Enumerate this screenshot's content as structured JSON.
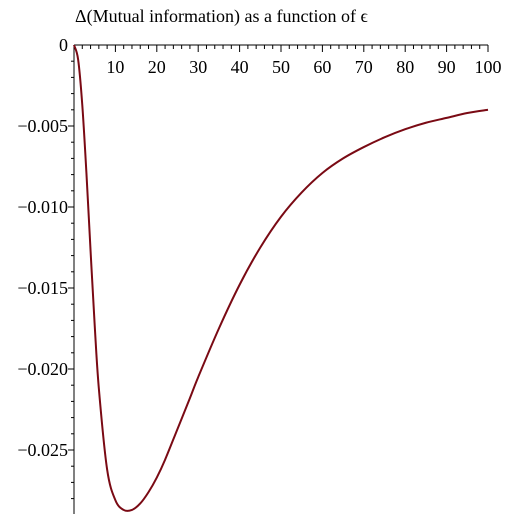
{
  "chart_data": {
    "type": "line",
    "title": "Δ(Mutual information) as a function of ϵ",
    "xlabel": "",
    "ylabel": "",
    "xlim": [
      0,
      100
    ],
    "ylim": [
      -0.0287,
      0
    ],
    "x_ticks": [
      10,
      20,
      30,
      40,
      50,
      60,
      70,
      80,
      90,
      100
    ],
    "x_tick_labels": [
      "10",
      "20",
      "30",
      "40",
      "50",
      "60",
      "70",
      "80",
      "90",
      "100"
    ],
    "y_ticks": [
      0,
      -0.005,
      -0.01,
      -0.015,
      -0.02,
      -0.025
    ],
    "y_tick_labels": [
      "0",
      "−0.005",
      "−0.010",
      "−0.015",
      "−0.020",
      "−0.025"
    ],
    "grid": false,
    "series": [
      {
        "color": "#7a0a14",
        "x": [
          0,
          1,
          2,
          3,
          4,
          5,
          6,
          8,
          10,
          12,
          14,
          16,
          18,
          20,
          22,
          25,
          28,
          30,
          35,
          40,
          45,
          50,
          55,
          60,
          65,
          70,
          75,
          80,
          85,
          90,
          95,
          100
        ],
        "y": [
          0,
          -0.0009,
          -0.0037,
          -0.0079,
          -0.0127,
          -0.0173,
          -0.0212,
          -0.0262,
          -0.0281,
          -0.0287,
          -0.0287,
          -0.0283,
          -0.0276,
          -0.0267,
          -0.0256,
          -0.0237,
          -0.0218,
          -0.0205,
          -0.0175,
          -0.0148,
          -0.0125,
          -0.0106,
          -0.0091,
          -0.0079,
          -0.007,
          -0.0063,
          -0.0057,
          -0.0052,
          -0.0048,
          -0.0045,
          -0.0042,
          -0.004
        ]
      }
    ]
  }
}
